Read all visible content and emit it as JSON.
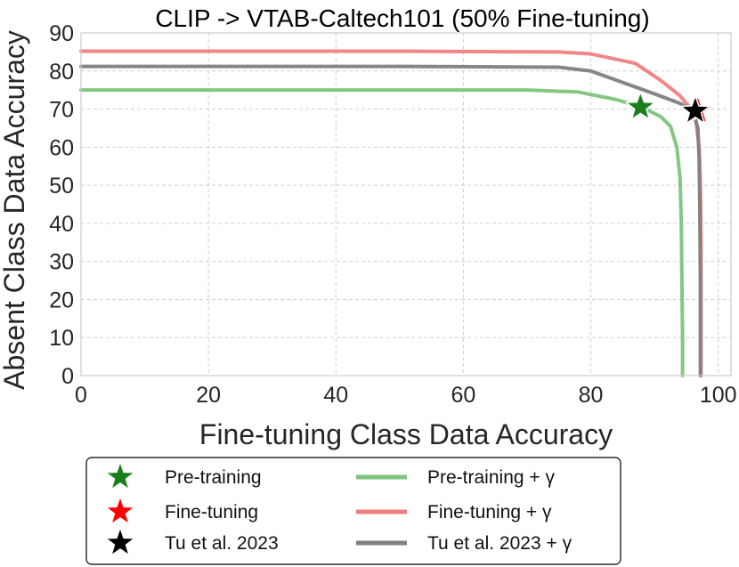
{
  "chart_data": {
    "type": "line",
    "title": "CLIP -> VTAB-Caltech101 (50% Fine-tuning)",
    "xlabel": "Fine-tuning Class Data Accuracy",
    "ylabel": "Absent Class Data Accuracy",
    "xlim": [
      0,
      102
    ],
    "ylim": [
      0,
      90
    ],
    "xticks": [
      0,
      20,
      40,
      60,
      80,
      100
    ],
    "xtick_labels": [
      "0",
      "20",
      "40",
      "60",
      "80",
      "100"
    ],
    "yticks": [
      0,
      10,
      20,
      30,
      40,
      50,
      60,
      70,
      80,
      90
    ],
    "ytick_labels": [
      "0",
      "10",
      "20",
      "30",
      "40",
      "50",
      "60",
      "70",
      "80",
      "90"
    ],
    "grid": true,
    "legend_position": "bottom",
    "series": [
      {
        "name": "Pre-training + γ",
        "kind": "line",
        "color": "#7CC47C",
        "x": [
          0,
          40,
          70,
          78,
          84,
          88,
          91,
          92.5,
          93.5,
          94,
          94.2,
          94.3,
          94.4,
          94.4,
          94.4
        ],
        "y": [
          75,
          75,
          75,
          74.5,
          72.5,
          70.5,
          68,
          65.5,
          60,
          52,
          40,
          25,
          10,
          3,
          0
        ]
      },
      {
        "name": "Fine-tuning + γ",
        "kind": "line",
        "color": "#F08080",
        "x": [
          0,
          50,
          75,
          80,
          87,
          91,
          94,
          95.5,
          96.5,
          97,
          97.2,
          97.3,
          97.3,
          97.3,
          97.3
        ],
        "y": [
          85.2,
          85.2,
          85,
          84.5,
          82,
          77.5,
          73.5,
          70.5,
          67,
          60,
          50,
          35,
          15,
          3,
          0
        ]
      },
      {
        "name": "Tu et al. 2023 + γ",
        "kind": "line",
        "color": "#808080",
        "x": [
          0,
          50,
          75,
          80,
          85,
          90,
          94,
          96,
          96.8,
          97,
          97.1,
          97.2,
          97.2,
          97.2
        ],
        "y": [
          81.2,
          81.2,
          81,
          80,
          77,
          74,
          71.5,
          69.5,
          65,
          57,
          45,
          25,
          5,
          0
        ]
      },
      {
        "name": "Pre-training",
        "kind": "star",
        "color": "#1A7F1A",
        "x": [
          87.8
        ],
        "y": [
          70.5
        ]
      },
      {
        "name": "Fine-tuning",
        "kind": "star",
        "color": "#FF0000",
        "x": [
          96.8
        ],
        "y": [
          69.5
        ]
      },
      {
        "name": "Tu et al. 2023",
        "kind": "star",
        "color": "#000000",
        "x": [
          96.4
        ],
        "y": [
          69.5
        ]
      }
    ]
  },
  "legend": {
    "column_1": [
      {
        "label": "Pre-training",
        "color": "#1A7F1A",
        "marker": "star-icon"
      },
      {
        "label": "Fine-tuning",
        "color": "#FF0000",
        "marker": "star-icon"
      },
      {
        "label": "Tu et al. 2023",
        "color": "#000000",
        "marker": "star-icon"
      }
    ],
    "column_2": [
      {
        "label": "Pre-training + γ",
        "color": "#7CC47C",
        "marker": "line-icon"
      },
      {
        "label": "Fine-tuning + γ",
        "color": "#F08080",
        "marker": "line-icon"
      },
      {
        "label": "Tu et al. 2023 + γ",
        "color": "#808080",
        "marker": "line-icon"
      }
    ]
  }
}
